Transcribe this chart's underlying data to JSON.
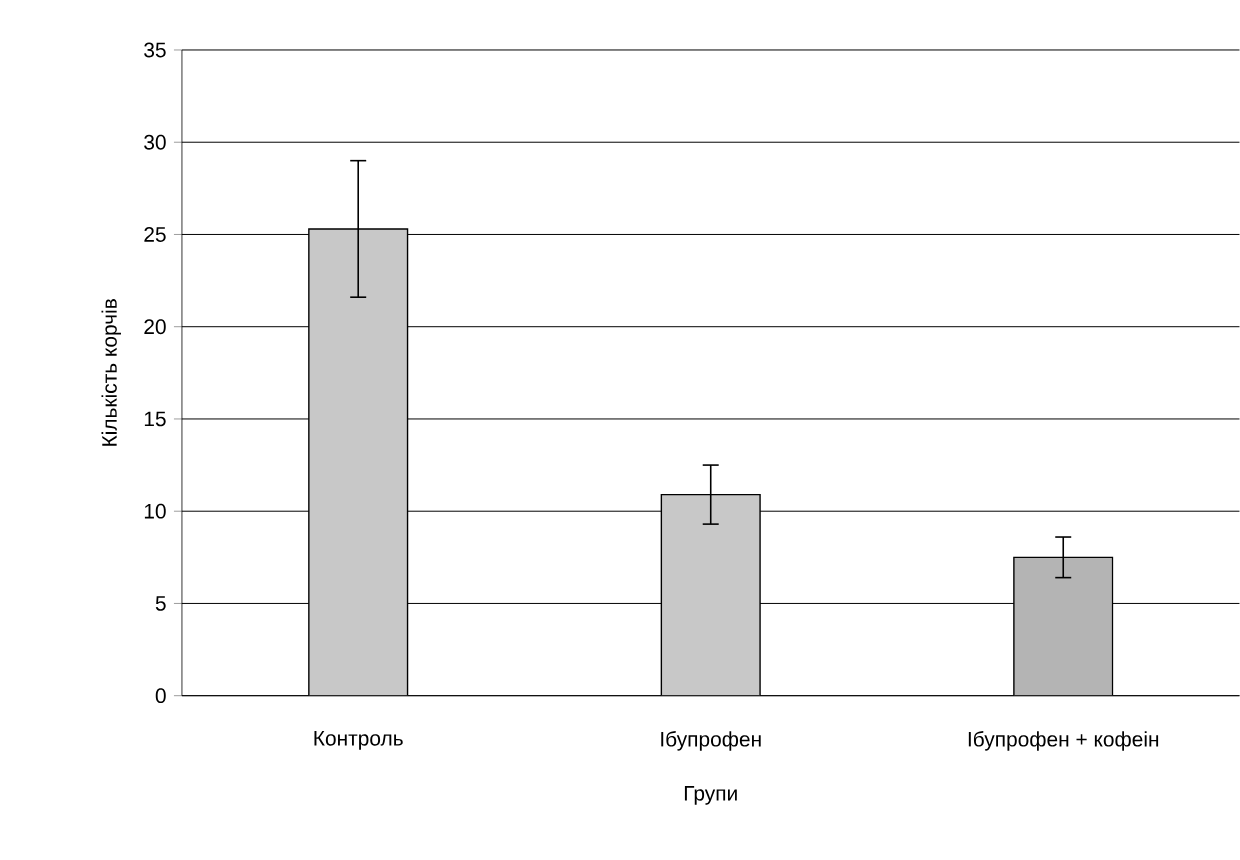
{
  "chart_data": {
    "type": "bar",
    "xlabel": "Групи",
    "ylabel": "Кількість корчів",
    "categories": [
      "Контроль",
      "Ібупрофен",
      "Ібупрофен + кофеін"
    ],
    "values": [
      25.3,
      10.9,
      7.5
    ],
    "errors": [
      3.7,
      1.6,
      1.1
    ],
    "colors": [
      "#c8c8c8",
      "#c8c8c8",
      "#b4b4b4"
    ],
    "ylim": [
      0,
      35
    ],
    "yticks": [
      0,
      5,
      10,
      15,
      20,
      25,
      30,
      35
    ],
    "grid": "y"
  }
}
